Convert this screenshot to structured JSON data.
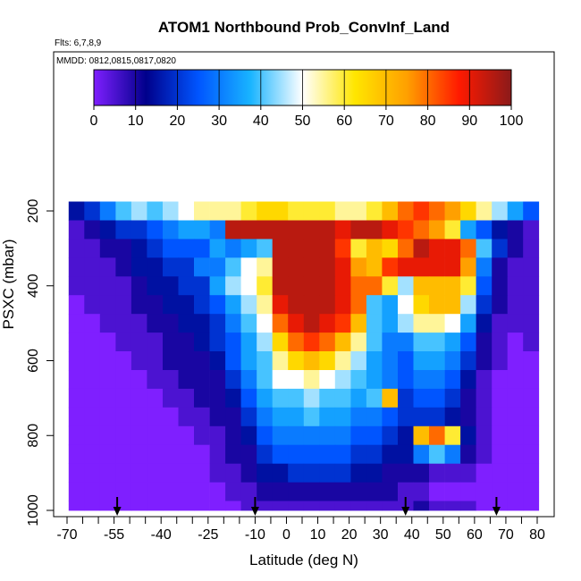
{
  "chart_data": {
    "type": "heatmap",
    "title": "ATOM1 Northbound Prob_ConvInf_Land",
    "annotations": [
      "Flts: 6,7,8,9",
      "MMDD: 0812,0815,0817,0820"
    ],
    "xlabel": "Latitude (deg N)",
    "ylabel": "PSXC (mbar)",
    "xlim": [
      -70,
      80
    ],
    "ylim": [
      1000,
      160
    ],
    "y_reversed": true,
    "x_ticks": [
      -70,
      -55,
      -40,
      -25,
      -10,
      0,
      10,
      20,
      30,
      40,
      50,
      60,
      70,
      80
    ],
    "y_ticks": [
      200,
      400,
      600,
      800,
      1000
    ],
    "colorbar": {
      "range": [
        0,
        100
      ],
      "ticks": [
        0,
        10,
        20,
        30,
        40,
        50,
        60,
        70,
        80,
        90,
        100
      ],
      "colors": [
        "#7f1fff",
        "#00008b",
        "#0055ff",
        "#19b4ff",
        "#ffffff",
        "#ffe600",
        "#ffa000",
        "#ff1a00",
        "#8b1a1a"
      ]
    },
    "pressure_levels": [
      200,
      250,
      300,
      350,
      400,
      450,
      500,
      550,
      600,
      650,
      700,
      750,
      800,
      850,
      900,
      950,
      1000
    ],
    "latitude_bins": [
      -67,
      -62,
      -57,
      -52,
      -47,
      -42,
      -37,
      -32,
      -27,
      -22,
      -17,
      -12,
      -7,
      -2,
      3,
      8,
      13,
      18,
      23,
      28,
      33,
      38,
      43,
      48,
      53,
      58,
      63,
      68,
      73,
      78
    ],
    "probability_grid": [
      [
        15,
        20,
        30,
        40,
        45,
        40,
        45,
        50,
        55,
        55,
        55,
        60,
        65,
        65,
        60,
        60,
        60,
        55,
        55,
        60,
        70,
        80,
        85,
        80,
        75,
        65,
        55,
        45,
        35,
        25
      ],
      [
        5,
        10,
        15,
        20,
        20,
        25,
        30,
        35,
        35,
        30,
        95,
        95,
        95,
        95,
        95,
        95,
        95,
        90,
        95,
        95,
        90,
        85,
        80,
        75,
        60,
        35,
        25,
        15,
        10,
        5
      ],
      [
        5,
        5,
        10,
        10,
        15,
        20,
        25,
        25,
        25,
        35,
        30,
        35,
        40,
        95,
        95,
        95,
        95,
        85,
        60,
        70,
        65,
        80,
        95,
        90,
        90,
        80,
        40,
        20,
        10,
        5
      ],
      [
        5,
        5,
        5,
        10,
        15,
        15,
        20,
        20,
        30,
        30,
        40,
        50,
        55,
        95,
        95,
        95,
        95,
        90,
        75,
        70,
        85,
        90,
        90,
        90,
        90,
        75,
        30,
        10,
        5,
        5
      ],
      [
        5,
        5,
        5,
        5,
        10,
        15,
        15,
        20,
        20,
        35,
        45,
        50,
        60,
        95,
        95,
        95,
        95,
        90,
        80,
        80,
        60,
        45,
        70,
        70,
        70,
        60,
        25,
        10,
        5,
        5
      ],
      [
        0,
        5,
        5,
        5,
        10,
        10,
        15,
        15,
        20,
        25,
        35,
        45,
        55,
        90,
        95,
        95,
        95,
        90,
        80,
        40,
        35,
        50,
        65,
        70,
        70,
        45,
        20,
        10,
        5,
        5
      ],
      [
        0,
        0,
        5,
        5,
        5,
        10,
        10,
        15,
        15,
        20,
        30,
        40,
        50,
        80,
        90,
        95,
        90,
        85,
        70,
        40,
        35,
        45,
        55,
        55,
        50,
        35,
        15,
        5,
        5,
        5
      ],
      [
        0,
        0,
        0,
        5,
        5,
        5,
        10,
        10,
        15,
        20,
        25,
        35,
        45,
        65,
        80,
        85,
        80,
        70,
        55,
        40,
        30,
        30,
        40,
        40,
        35,
        25,
        10,
        5,
        0,
        5
      ],
      [
        0,
        0,
        0,
        0,
        5,
        5,
        10,
        10,
        10,
        15,
        25,
        35,
        40,
        55,
        65,
        70,
        65,
        55,
        45,
        35,
        30,
        25,
        35,
        35,
        30,
        20,
        10,
        5,
        0,
        0
      ],
      [
        0,
        0,
        0,
        0,
        0,
        5,
        5,
        10,
        10,
        10,
        20,
        30,
        40,
        50,
        50,
        55,
        50,
        45,
        40,
        35,
        30,
        25,
        30,
        30,
        25,
        15,
        5,
        0,
        0,
        0
      ],
      [
        0,
        0,
        0,
        0,
        0,
        0,
        5,
        5,
        10,
        10,
        15,
        25,
        35,
        40,
        40,
        45,
        40,
        40,
        35,
        40,
        70,
        20,
        25,
        25,
        20,
        10,
        5,
        0,
        0,
        0
      ],
      [
        0,
        0,
        0,
        0,
        0,
        0,
        0,
        5,
        5,
        10,
        10,
        20,
        30,
        35,
        35,
        40,
        35,
        35,
        30,
        30,
        25,
        20,
        20,
        20,
        15,
        10,
        5,
        0,
        0,
        0
      ],
      [
        0,
        0,
        0,
        0,
        0,
        0,
        0,
        0,
        5,
        5,
        10,
        15,
        25,
        30,
        30,
        30,
        30,
        30,
        25,
        25,
        20,
        15,
        70,
        80,
        60,
        15,
        5,
        0,
        0,
        0
      ],
      [
        0,
        0,
        0,
        0,
        0,
        0,
        0,
        0,
        0,
        5,
        10,
        10,
        20,
        25,
        25,
        25,
        25,
        25,
        20,
        20,
        15,
        15,
        30,
        40,
        30,
        10,
        5,
        0,
        0,
        0
      ],
      [
        0,
        0,
        0,
        0,
        0,
        0,
        0,
        0,
        0,
        5,
        5,
        10,
        15,
        15,
        20,
        20,
        20,
        20,
        15,
        15,
        10,
        10,
        10,
        5,
        5,
        5,
        0,
        0,
        0,
        0
      ],
      [
        0,
        0,
        0,
        0,
        0,
        0,
        0,
        0,
        0,
        0,
        5,
        5,
        10,
        10,
        10,
        10,
        10,
        10,
        10,
        10,
        10,
        5,
        5,
        0,
        0,
        0,
        0,
        0,
        0,
        0
      ],
      [
        0,
        0,
        0,
        0,
        0,
        0,
        0,
        0,
        0,
        0,
        0,
        5,
        5,
        5,
        5,
        5,
        5,
        5,
        5,
        5,
        5,
        5,
        10,
        5,
        5,
        5,
        0,
        0,
        0,
        0
      ]
    ],
    "arrow_latitudes": [
      -54,
      -10,
      38,
      67
    ]
  }
}
